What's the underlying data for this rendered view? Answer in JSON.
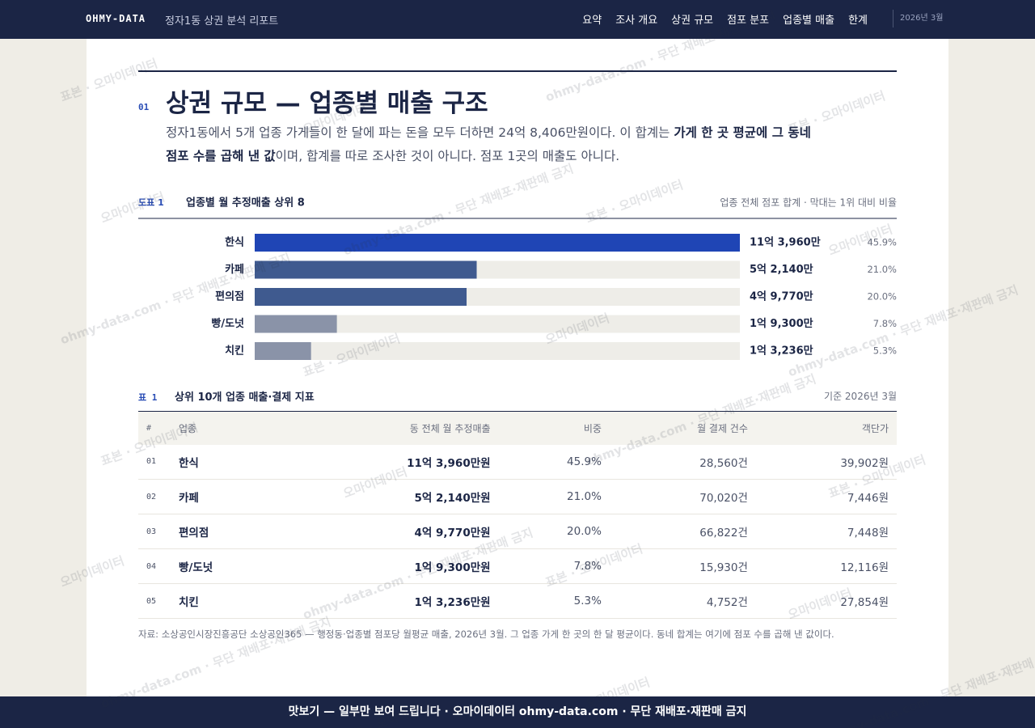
{
  "nav": {
    "brand": "OHMY-DATA",
    "subtitle": "정자1동 상권 분석 리포트",
    "links": [
      "요약",
      "조사 개요",
      "상권 규모",
      "점포 분포",
      "업종별 매출",
      "한계"
    ],
    "date": "2026년 3월"
  },
  "section": {
    "number": "01",
    "title": "상권 규모 — 업종별 매출 구조",
    "lead": [
      {
        "text": "정자1동에서 5개 업종 가게들이 한 달에 파는 돈을 모두 더하면 24억 8,406만원이다. 이 합계는 ",
        "strong": false
      },
      {
        "text": "가게 한 곳 평균에 그 동네 점포 수를 곱해 낸 값",
        "strong": true
      },
      {
        "text": "이며, 합계를 따로 조사한 것이 아니다. 점포 1곳의 매출도 아니다.",
        "strong": false
      }
    ]
  },
  "chart_data": {
    "type": "bar",
    "orientation": "horizontal",
    "label": "도표 1",
    "title": "업종별 월 추정매출 상위 8",
    "note": "업종 전체 점포 합계 · 막대는 1위 대비 비율",
    "categories": [
      "한식",
      "카페",
      "편의점",
      "빵/도넛",
      "치킨"
    ],
    "values": [
      113960,
      52140,
      49770,
      19300,
      13236
    ],
    "value_labels": [
      "11억 3,960만",
      "5억 2,140만",
      "4억 9,770만",
      "1억 9,300만",
      "1억 3,236만"
    ],
    "shares": [
      "45.9%",
      "21.0%",
      "20.0%",
      "7.8%",
      "5.3%"
    ],
    "colors": [
      "#1f45b5",
      "#3f5a8f",
      "#3f5a8f",
      "#8a93a8",
      "#8a93a8"
    ],
    "xlim": [
      0,
      113960
    ]
  },
  "table": {
    "label": "표 1",
    "title": "상위 10개 업종 매출·결제 지표",
    "basis": "기준 2026년 3월",
    "header": [
      "#",
      "업종",
      "동 전체 월 추정매출",
      "비중",
      "월 결제 건수",
      "객단가"
    ],
    "rows": [
      [
        "01",
        "한식",
        "11억 3,960만원",
        "45.9%",
        "28,560건",
        "39,902원"
      ],
      [
        "02",
        "카페",
        "5억 2,140만원",
        "21.0%",
        "70,020건",
        "7,446원"
      ],
      [
        "03",
        "편의점",
        "4억 9,770만원",
        "20.0%",
        "66,822건",
        "7,448원"
      ],
      [
        "04",
        "빵/도넛",
        "1억 9,300만원",
        "7.8%",
        "15,930건",
        "12,116원"
      ],
      [
        "05",
        "치킨",
        "1억 3,236만원",
        "5.3%",
        "4,752건",
        "27,854원"
      ]
    ]
  },
  "source": "자료: 소상공인시장진흥공단 소상공인365 — 행정동·업종별 점포당 월평균 매출, 2026년 3월. 그 업종 가게 한 곳의 한 달 평균이다. 동네 합계는 여기에 점포 수를 곱해 낸 값이다.",
  "footer": "맛보기 — 일부만 보여 드립니다 · 오마이데이터 ohmy-data.com · 무단 재배포·재판매 금지",
  "watermarks": [
    "표본 · 오마이데이터",
    "오마이데이터",
    "ohmy-data.com · 무단 재배포·재판매 금지"
  ]
}
